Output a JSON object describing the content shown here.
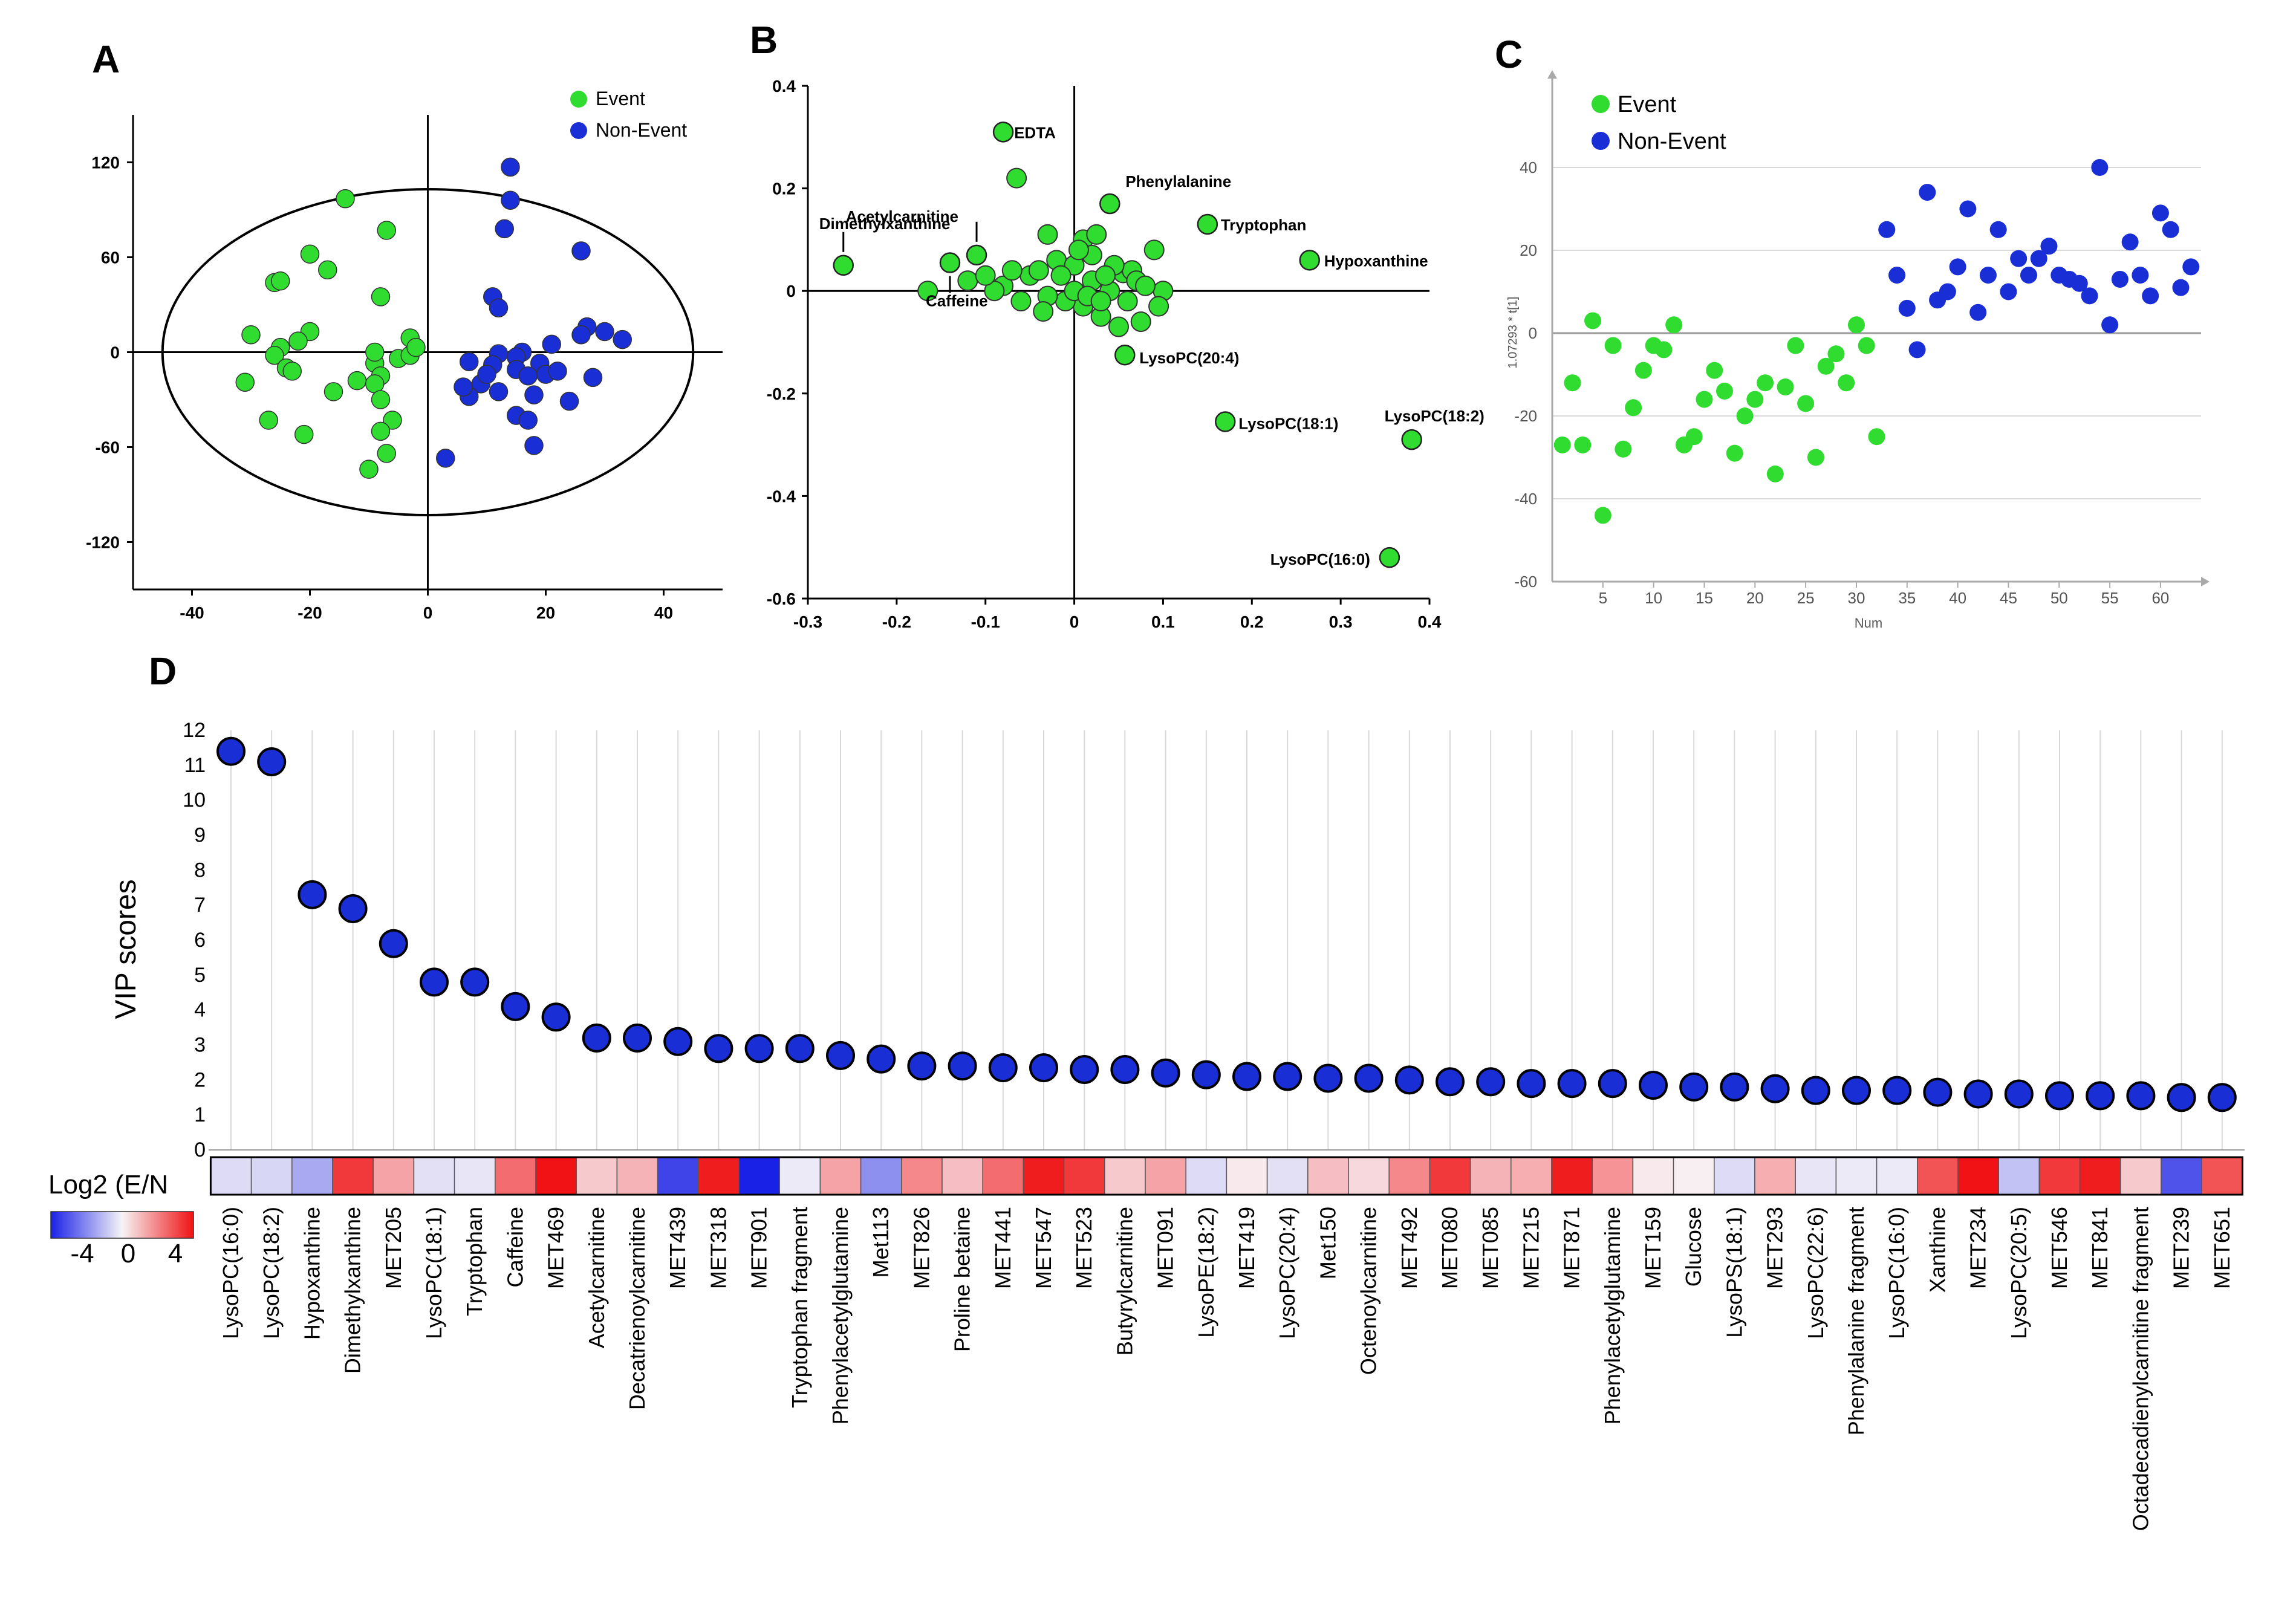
{
  "colors": {
    "event": "#2fdc2f",
    "non_event": "#1a2ed6",
    "axis": "#000000",
    "grid": "#d9d9d9"
  },
  "chart_data": [
    {
      "panel": "A",
      "type": "scatter",
      "legend": [
        "Event",
        "Non-Event"
      ],
      "xlim": [
        -50,
        50
      ],
      "ylim": [
        -150,
        150
      ],
      "xticks": [
        -40,
        -20,
        0,
        20,
        40
      ],
      "yticks": [
        120,
        60,
        0,
        -60,
        -120
      ],
      "ellipse": {
        "cx": 0,
        "cy": 0,
        "rx": 45,
        "ry": 103
      },
      "series": [
        {
          "name": "Event",
          "points": [
            [
              -14,
              97
            ],
            [
              -7,
              77
            ],
            [
              -20,
              62
            ],
            [
              -17,
              52
            ],
            [
              -26,
              44
            ],
            [
              -25,
              45
            ],
            [
              -30,
              11
            ],
            [
              -20,
              13
            ],
            [
              -22,
              7
            ],
            [
              -25,
              3
            ],
            [
              -26,
              -2
            ],
            [
              -24,
              -10
            ],
            [
              -23,
              -12
            ],
            [
              -31,
              -19
            ],
            [
              -27,
              -43
            ],
            [
              -21,
              -52
            ],
            [
              -12,
              -18
            ],
            [
              -9,
              -7
            ],
            [
              -8,
              -15
            ],
            [
              -16,
              -25
            ],
            [
              -9,
              -20
            ],
            [
              -8,
              -30
            ],
            [
              -6,
              -43
            ],
            [
              -8,
              -50
            ],
            [
              -7,
              -64
            ],
            [
              -10,
              -74
            ],
            [
              -8,
              35
            ],
            [
              -9,
              0
            ],
            [
              -5,
              -4
            ],
            [
              -3,
              -2
            ],
            [
              -3,
              9
            ],
            [
              -2,
              3
            ]
          ]
        },
        {
          "name": "Non-Event",
          "points": [
            [
              14,
              117
            ],
            [
              14,
              96
            ],
            [
              13,
              78
            ],
            [
              11,
              35
            ],
            [
              12,
              28
            ],
            [
              26,
              64
            ],
            [
              30,
              13
            ],
            [
              27,
              16
            ],
            [
              26,
              11
            ],
            [
              21,
              5
            ],
            [
              33,
              8
            ],
            [
              16,
              0
            ],
            [
              12,
              -1
            ],
            [
              15,
              -3
            ],
            [
              19,
              -7
            ],
            [
              20,
              -14
            ],
            [
              7,
              -6
            ],
            [
              11,
              -8
            ],
            [
              15,
              -11
            ],
            [
              17,
              -15
            ],
            [
              9,
              -20
            ],
            [
              12,
              -25
            ],
            [
              18,
              -27
            ],
            [
              24,
              -31
            ],
            [
              15,
              -40
            ],
            [
              17,
              -43
            ],
            [
              7,
              -28
            ],
            [
              6,
              -22
            ],
            [
              28,
              -16
            ],
            [
              18,
              -59
            ],
            [
              3,
              -67
            ],
            [
              22,
              -12
            ],
            [
              10,
              -14
            ]
          ]
        }
      ]
    },
    {
      "panel": "B",
      "type": "scatter",
      "subtype": "loadings",
      "xlim": [
        -0.3,
        0.4
      ],
      "ylim": [
        -0.6,
        0.4
      ],
      "xticks": [
        "-0.3",
        "-0.2",
        "-0.1",
        "0",
        "0.1",
        "0.2",
        "0.3",
        "0.4"
      ],
      "yticks": [
        "0.4",
        "0.2",
        "0",
        "-0.2",
        "-0.4",
        "-0.6"
      ],
      "labeled_points": [
        {
          "label": "EDTA",
          "x": -0.08,
          "y": 0.31
        },
        {
          "label": "Acetylcarnitine",
          "x": -0.11,
          "y": 0.07
        },
        {
          "label": "Dimethylxanthine",
          "x": -0.26,
          "y": 0.05
        },
        {
          "label": "Caffeine",
          "x": -0.14,
          "y": 0.055
        },
        {
          "label": "Phenylalanine",
          "x": 0.04,
          "y": 0.17
        },
        {
          "label": "Tryptophan",
          "x": 0.15,
          "y": 0.13
        },
        {
          "label": "Hypoxanthine",
          "x": 0.265,
          "y": 0.06
        },
        {
          "label": "LysoPC(20:4)",
          "x": 0.057,
          "y": -0.125
        },
        {
          "label": "LysoPC(18:1)",
          "x": 0.17,
          "y": -0.255
        },
        {
          "label": "LysoPC(18:2)",
          "x": 0.38,
          "y": -0.29
        },
        {
          "label": "LysoPC(16:0)",
          "x": 0.355,
          "y": -0.52
        }
      ],
      "other_points": [
        [
          -0.065,
          0.22
        ],
        [
          -0.165,
          0
        ],
        [
          -0.03,
          0.11
        ],
        [
          0.01,
          0.1
        ],
        [
          0.025,
          0.11
        ],
        [
          0.055,
          0.035
        ],
        [
          0.075,
          -0.06
        ],
        [
          0.1,
          0
        ],
        [
          0.095,
          -0.03
        ],
        [
          0.09,
          0.08
        ],
        [
          0.065,
          0.04
        ],
        [
          -0.05,
          0.03
        ],
        [
          -0.08,
          0.01
        ],
        [
          -0.12,
          0.02
        ],
        [
          -0.06,
          -0.02
        ],
        [
          -0.04,
          0.04
        ],
        [
          -0.02,
          0.06
        ],
        [
          0.0,
          0.05
        ],
        [
          0.02,
          0.02
        ],
        [
          0.04,
          0.0
        ],
        [
          0.06,
          -0.02
        ],
        [
          0.03,
          -0.05
        ],
        [
          0.01,
          -0.03
        ],
        [
          -0.01,
          -0.02
        ],
        [
          -0.03,
          -0.01
        ],
        [
          0.0,
          0.0
        ],
        [
          0.02,
          0.07
        ],
        [
          0.045,
          0.05
        ],
        [
          0.07,
          0.02
        ],
        [
          -0.09,
          0.0
        ],
        [
          -0.1,
          0.03
        ],
        [
          0.05,
          -0.07
        ],
        [
          -0.015,
          0.03
        ],
        [
          0.015,
          -0.01
        ],
        [
          0.035,
          0.03
        ],
        [
          0.005,
          0.08
        ],
        [
          -0.035,
          -0.04
        ],
        [
          0.08,
          0.01
        ],
        [
          -0.07,
          0.04
        ],
        [
          0.03,
          -0.02
        ]
      ]
    },
    {
      "panel": "C",
      "type": "scatter",
      "legend": [
        "Event",
        "Non-Event"
      ],
      "xlabel": "Num",
      "ylabel": "1.07293 * t[1]",
      "xlim": [
        0,
        64
      ],
      "ylim": [
        -60,
        60
      ],
      "xticks": [
        5,
        10,
        15,
        20,
        25,
        30,
        35,
        40,
        45,
        50,
        55,
        60
      ],
      "yticks": [
        40,
        20,
        0,
        -20,
        -40,
        -60
      ],
      "series": [
        {
          "name": "Event",
          "points": [
            [
              1,
              -27
            ],
            [
              2,
              -12
            ],
            [
              3,
              -27
            ],
            [
              4,
              3
            ],
            [
              5,
              -44
            ],
            [
              6,
              -3
            ],
            [
              7,
              -28
            ],
            [
              8,
              -18
            ],
            [
              9,
              -9
            ],
            [
              10,
              -3
            ],
            [
              11,
              -4
            ],
            [
              12,
              2
            ],
            [
              13,
              -27
            ],
            [
              14,
              -25
            ],
            [
              15,
              -16
            ],
            [
              16,
              -9
            ],
            [
              17,
              -14
            ],
            [
              18,
              -29
            ],
            [
              19,
              -20
            ],
            [
              20,
              -16
            ],
            [
              21,
              -12
            ],
            [
              22,
              -34
            ],
            [
              23,
              -13
            ],
            [
              24,
              -3
            ],
            [
              25,
              -17
            ],
            [
              26,
              -30
            ],
            [
              27,
              -8
            ],
            [
              28,
              -5
            ],
            [
              29,
              -12
            ],
            [
              30,
              2
            ],
            [
              31,
              -3
            ],
            [
              32,
              -25
            ]
          ]
        },
        {
          "name": "Non-Event",
          "points": [
            [
              33,
              25
            ],
            [
              34,
              14
            ],
            [
              35,
              6
            ],
            [
              36,
              -4
            ],
            [
              37,
              34
            ],
            [
              38,
              8
            ],
            [
              39,
              10
            ],
            [
              40,
              16
            ],
            [
              41,
              30
            ],
            [
              42,
              5
            ],
            [
              43,
              14
            ],
            [
              44,
              25
            ],
            [
              45,
              10
            ],
            [
              46,
              18
            ],
            [
              47,
              14
            ],
            [
              48,
              18
            ],
            [
              49,
              21
            ],
            [
              50,
              14
            ],
            [
              51,
              13
            ],
            [
              52,
              12
            ],
            [
              53,
              9
            ],
            [
              54,
              40
            ],
            [
              55,
              2
            ],
            [
              56,
              13
            ],
            [
              57,
              22
            ],
            [
              58,
              14
            ],
            [
              59,
              9
            ],
            [
              60,
              29
            ],
            [
              61,
              25
            ],
            [
              62,
              11
            ],
            [
              63,
              16
            ]
          ]
        }
      ]
    },
    {
      "panel": "D",
      "type": "scatter",
      "subtype": "vip-dot-plot",
      "ylabel": "VIP scores",
      "ylim": [
        0,
        12
      ],
      "yticks": [
        0,
        1,
        2,
        3,
        4,
        5,
        6,
        7,
        8,
        9,
        10,
        11,
        12
      ],
      "heatmap_label": "Log2 (E/N",
      "colorbar_ticks": [
        "-4",
        "0",
        "4"
      ],
      "categories": [
        "LysoPC(16:0)",
        "LysoPC(18:2)",
        "Hypoxanthine",
        "Dimethylxanthine",
        "MET205",
        "LysoPC(18:1)",
        "Tryptophan",
        "Caffeine",
        "MET469",
        "Acetylcarnitine",
        "Decatrienoylcarnitine",
        "MET439",
        "MET318",
        "MET901",
        "Tryptophan fragment",
        "Phenylacetylglutamine",
        "Met113",
        "MET826",
        "Proline betaine",
        "MET441",
        "MET547",
        "MET523",
        "Butyrylcarnitine",
        "MET091",
        "LysoPE(18:2)",
        "MET419",
        "LysoPC(20:4)",
        "Met150",
        "Octenoylcarnitine",
        "MET492",
        "MET080",
        "MET085",
        "MET215",
        "MET871",
        "Phenylacetylglutamine",
        "MET159",
        "Glucose",
        "LysoPS(18:1)",
        "MET293",
        "LysoPC(22:6)",
        "Phenylalanine fragment",
        "LysoPC(16:0)",
        "Xanthine",
        "MET234",
        "LysoPC(20:5)",
        "MET546",
        "MET841",
        "Octadecadienylcarnitine fragment",
        "MET239",
        "MET651"
      ],
      "values": [
        11.4,
        11.1,
        7.3,
        6.9,
        5.9,
        4.8,
        4.8,
        4.1,
        3.8,
        3.2,
        3.2,
        3.1,
        2.9,
        2.9,
        2.9,
        2.7,
        2.6,
        2.4,
        2.4,
        2.35,
        2.35,
        2.3,
        2.3,
        2.2,
        2.15,
        2.1,
        2.1,
        2.05,
        2.05,
        2.0,
        1.95,
        1.95,
        1.9,
        1.9,
        1.9,
        1.85,
        1.8,
        1.8,
        1.75,
        1.7,
        1.7,
        1.7,
        1.65,
        1.6,
        1.6,
        1.55,
        1.55,
        1.55,
        1.5,
        1.5
      ],
      "log2_ratio": [
        -0.5,
        -0.6,
        -1.5,
        3.5,
        1.5,
        -0.4,
        -0.3,
        2.5,
        4.2,
        0.8,
        1.2,
        -3.5,
        4,
        -4.2,
        -0.2,
        1.5,
        -2,
        2,
        1,
        2.5,
        4,
        3.5,
        0.8,
        1.5,
        -0.5,
        0.2,
        -0.4,
        1,
        0.5,
        2,
        3.5,
        1.2,
        1.3,
        4,
        1.8,
        0.2,
        0.1,
        -0.5,
        1.3,
        -0.3,
        -0.2,
        -0.2,
        3,
        4.2,
        -1,
        3.5,
        4,
        0.8,
        -3.2,
        3
      ]
    }
  ]
}
